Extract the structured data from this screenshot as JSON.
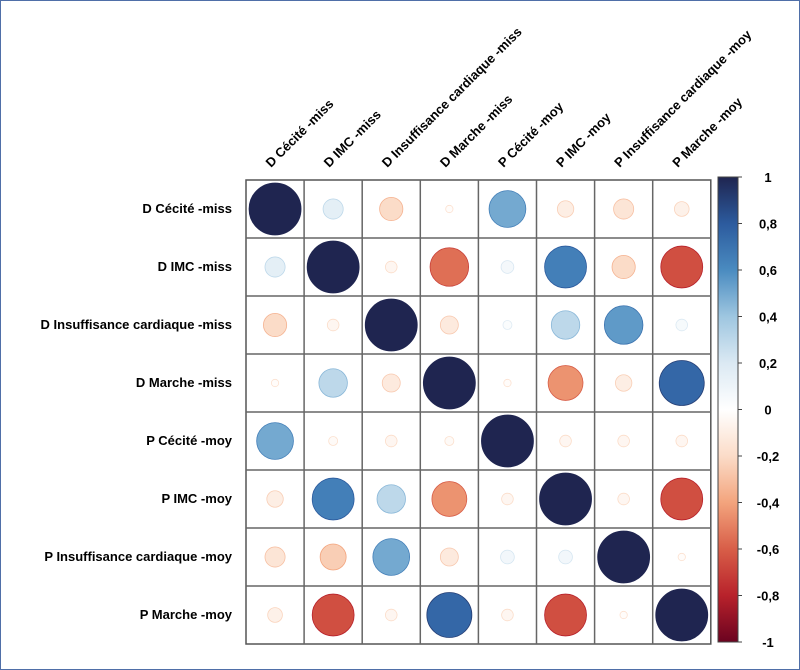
{
  "chart_data": {
    "type": "heatmap",
    "variables": [
      "D Cécité -miss",
      "D IMC -miss",
      "D Insuffisance cardiaque -miss",
      "D Marche -miss",
      "P Cécité -moy",
      "P IMC -moy",
      "P Insuffisance cardiaque -moy",
      "P Marche -moy"
    ],
    "matrix": [
      [
        1.0,
        0.15,
        -0.2,
        -0.02,
        0.5,
        -0.1,
        -0.15,
        -0.08
      ],
      [
        0.15,
        1.0,
        -0.05,
        -0.55,
        0.06,
        0.65,
        -0.2,
        -0.65
      ],
      [
        -0.2,
        -0.05,
        1.0,
        -0.12,
        0.03,
        0.3,
        0.55,
        0.05
      ],
      [
        -0.02,
        0.3,
        -0.12,
        1.0,
        -0.02,
        -0.45,
        -0.1,
        0.75
      ],
      [
        0.5,
        -0.03,
        -0.05,
        -0.03,
        1.0,
        -0.05,
        -0.05,
        -0.05
      ],
      [
        -0.1,
        0.65,
        0.3,
        -0.45,
        -0.05,
        1.0,
        -0.05,
        -0.65
      ],
      [
        -0.15,
        -0.25,
        0.5,
        -0.12,
        0.07,
        0.07,
        1.0,
        -0.02
      ],
      [
        -0.08,
        -0.65,
        -0.05,
        0.75,
        -0.05,
        -0.65,
        -0.02,
        1.0
      ]
    ],
    "colorbar": {
      "range": [
        -1,
        1
      ],
      "tick_labels": [
        "1",
        "0,8",
        "0,6",
        "0,4",
        "0,2",
        "0",
        "-0,2",
        "-0,4",
        "-0,6",
        "-0,8",
        "-1"
      ]
    }
  }
}
